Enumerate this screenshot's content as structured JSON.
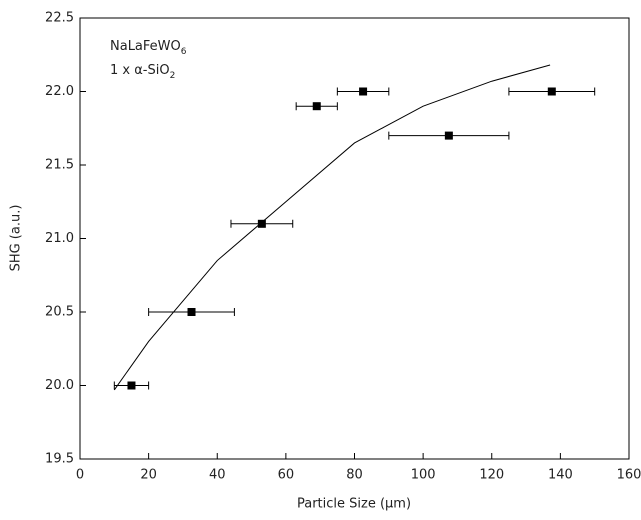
{
  "chart_data": {
    "type": "scatter",
    "x_label": "Particle Size (μm)",
    "y_label": "SHG (a.u.)",
    "annotation": [
      {
        "text": "NaLaFeWO",
        "sub": "6"
      },
      {
        "text": "1 x α-SiO",
        "sub": "2"
      }
    ],
    "xlim": [
      0,
      160
    ],
    "xticks": [
      0,
      20,
      40,
      60,
      80,
      100,
      120,
      140,
      160
    ],
    "ylim": [
      19.5,
      22.5
    ],
    "yticks": [
      19.5,
      {
        "value": 20,
        "label": "20.0"
      },
      20.5,
      {
        "value": 21,
        "label": "21.0"
      },
      21.5,
      {
        "value": 22,
        "label": "22.0"
      },
      22.5
    ],
    "series": [
      {
        "color": "#000000",
        "x": [
          15,
          32.5,
          53,
          69,
          82.5,
          107.5,
          137.5
        ],
        "values": [
          20.0,
          20.5,
          21.1,
          21.9,
          22.0,
          21.7,
          22.0
        ],
        "xerr": [
          5,
          12.5,
          9,
          6,
          7.5,
          17.5,
          12.5
        ]
      },
      {
        "type": "line",
        "color": "#000000",
        "x": [
          10,
          20,
          40,
          60,
          80,
          100,
          120,
          137
        ],
        "values": [
          19.97,
          20.3,
          20.85,
          21.25,
          21.65,
          21.9,
          22.07,
          22.18
        ]
      }
    ]
  }
}
